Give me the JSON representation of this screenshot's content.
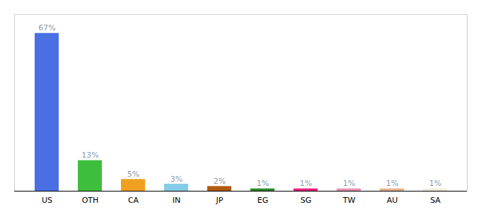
{
  "chart_data": {
    "type": "bar",
    "categories": [
      "US",
      "OTH",
      "CA",
      "IN",
      "JP",
      "EG",
      "SG",
      "TW",
      "AU",
      "SA"
    ],
    "values": [
      67,
      13,
      5,
      3,
      2,
      1,
      1,
      1,
      1,
      1
    ],
    "value_labels": [
      "67%",
      "13%",
      "5%",
      "3%",
      "2%",
      "1%",
      "1%",
      "1%",
      "1%",
      "1%"
    ],
    "colors": [
      "#4a6fe3",
      "#3dbf3d",
      "#f0a020",
      "#85cce8",
      "#b05a10",
      "#2a8a2a",
      "#e8207a",
      "#e890b0",
      "#e8b090",
      "#f0edd8"
    ],
    "ylim": [
      0,
      75
    ],
    "data_labels": true,
    "tick_labels": "x",
    "grid": false
  }
}
